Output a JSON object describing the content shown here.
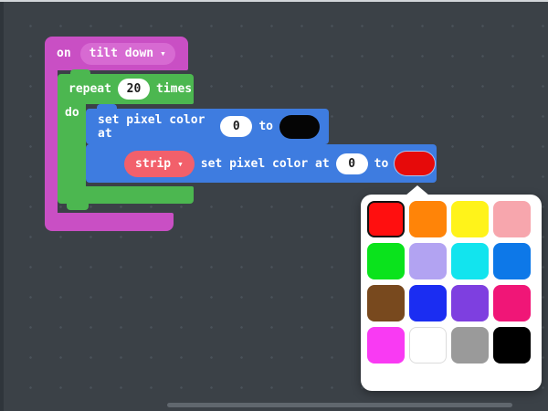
{
  "canvas": {
    "background": "#3b4147",
    "dot_color": "#4a525a",
    "scrollbar_color": "#60676e"
  },
  "blocks": {
    "on_tilt_down": {
      "prefix": "on",
      "dropdown_label": "tilt down",
      "dropdown_arrow": "▾",
      "color": "#c94fc4",
      "dropdown_color": "#d76ad2"
    },
    "repeat_loop": {
      "label_repeat": "repeat",
      "count": "20",
      "label_times": "times",
      "label_do": "do",
      "color": "#4cb750"
    },
    "set_pixel_1": {
      "label": "set pixel color at",
      "index": "0",
      "label_to": "to",
      "value_color": "#000000",
      "block_color": "#3e7ce0"
    },
    "set_pixel_2": {
      "variable": "strip",
      "variable_arrow": "▾",
      "variable_color": "#f2606b",
      "label": "set pixel color at",
      "index": "0",
      "label_to": "to",
      "value_color": "#e60a0a",
      "block_color": "#3e7ce0"
    }
  },
  "color_picker": {
    "selected_color": "#ff0f0f",
    "swatches": [
      {
        "name": "red",
        "hex": "#ff0f0f",
        "selected": true
      },
      {
        "name": "orange",
        "hex": "#ff8408"
      },
      {
        "name": "yellow",
        "hex": "#fff31a"
      },
      {
        "name": "salmon-pink",
        "hex": "#f7a6ad"
      },
      {
        "name": "green",
        "hex": "#0ae31c"
      },
      {
        "name": "lavender",
        "hex": "#b2a3f2"
      },
      {
        "name": "cyan",
        "hex": "#12e4ee"
      },
      {
        "name": "azure-blue",
        "hex": "#0d78e8"
      },
      {
        "name": "brown",
        "hex": "#78491e"
      },
      {
        "name": "blue",
        "hex": "#1b2df2"
      },
      {
        "name": "violet",
        "hex": "#7e3fe0"
      },
      {
        "name": "rose",
        "hex": "#f01677"
      },
      {
        "name": "magenta",
        "hex": "#f93af3"
      },
      {
        "name": "white",
        "hex": "#ffffff"
      },
      {
        "name": "gray",
        "hex": "#9a9a9a"
      },
      {
        "name": "black",
        "hex": "#000000"
      }
    ]
  }
}
